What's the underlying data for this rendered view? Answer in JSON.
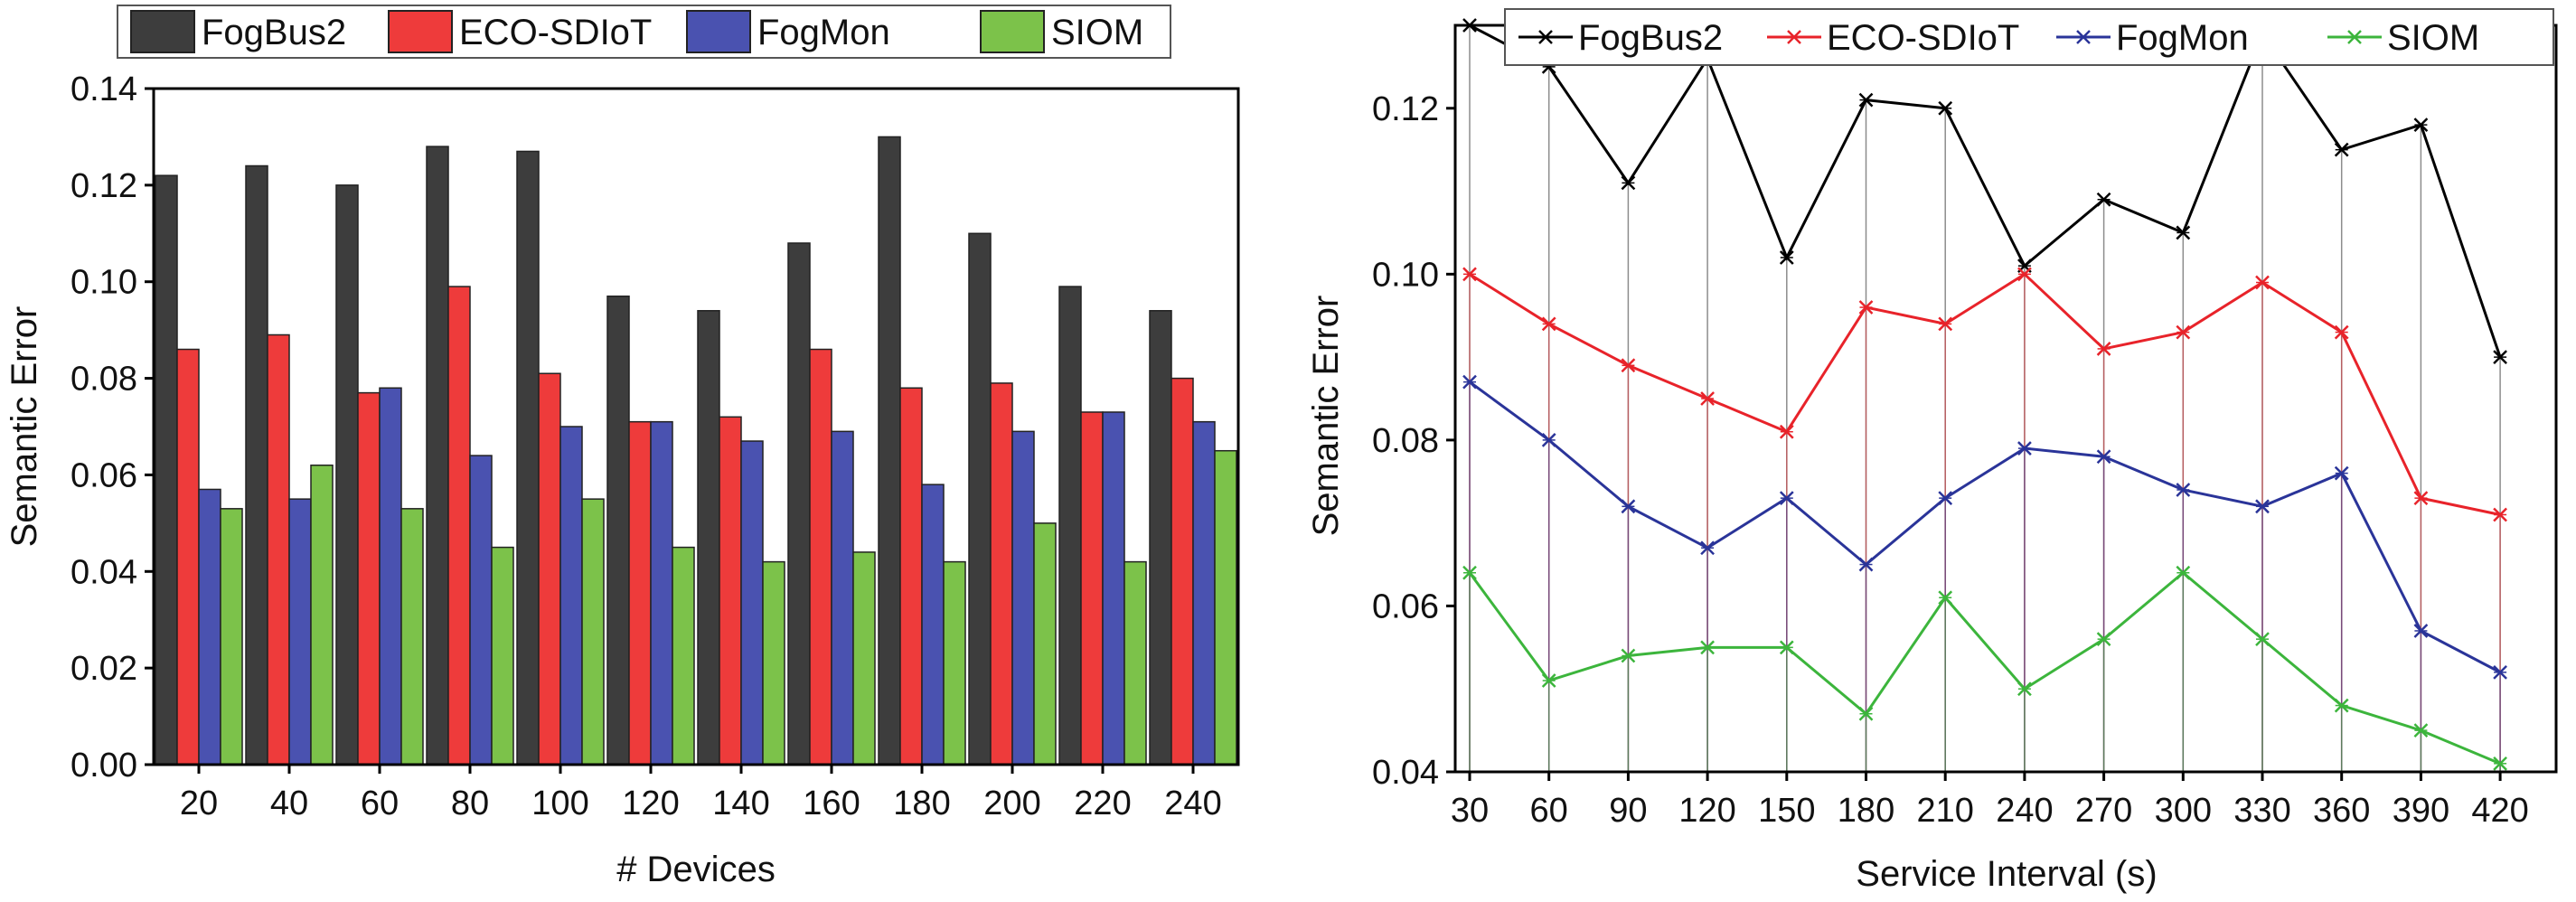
{
  "colors": {
    "FogBus2": "#3d3d3d",
    "ECO-SDIoT": "#ee3b3b",
    "FogMon": "#4a52b0",
    "SIOM": "#7cc24a"
  },
  "line_colors": {
    "FogBus2": "#000000",
    "ECO-SDIoT": "#e8232a",
    "FogMon": "#2a3499",
    "SIOM": "#3cb53c"
  },
  "chart_data": [
    {
      "type": "bar",
      "title": "",
      "xlabel": "# Devices",
      "ylabel": "Semantic Error",
      "ylim": [
        0,
        0.14
      ],
      "yticks": [
        "0.00",
        "0.02",
        "0.04",
        "0.06",
        "0.08",
        "0.10",
        "0.12",
        "0.14"
      ],
      "categories": [
        "20",
        "40",
        "60",
        "80",
        "100",
        "120",
        "140",
        "160",
        "180",
        "200",
        "220",
        "240"
      ],
      "legend": [
        "FogBus2",
        "ECO-SDIoT",
        "FogMon",
        "SIOM"
      ],
      "legend_position": "top",
      "series": [
        {
          "name": "FogBus2",
          "values": [
            0.122,
            0.124,
            0.12,
            0.128,
            0.127,
            0.097,
            0.094,
            0.108,
            0.13,
            0.11,
            0.099,
            0.094
          ]
        },
        {
          "name": "ECO-SDIoT",
          "values": [
            0.086,
            0.089,
            0.077,
            0.099,
            0.081,
            0.071,
            0.072,
            0.086,
            0.078,
            0.079,
            0.073,
            0.08
          ]
        },
        {
          "name": "FogMon",
          "values": [
            0.057,
            0.055,
            0.078,
            0.064,
            0.07,
            0.071,
            0.067,
            0.069,
            0.058,
            0.069,
            0.073,
            0.071
          ]
        },
        {
          "name": "SIOM",
          "values": [
            0.053,
            0.062,
            0.053,
            0.045,
            0.055,
            0.045,
            0.042,
            0.044,
            0.042,
            0.05,
            0.042,
            0.065
          ]
        }
      ]
    },
    {
      "type": "line",
      "title": "",
      "xlabel": "Service Interval (s)",
      "ylabel": "Semantic Error",
      "ylim": [
        0.04,
        0.13
      ],
      "yticks": [
        "0.04",
        "0.06",
        "0.08",
        "0.10",
        "0.12"
      ],
      "x": [
        "30",
        "60",
        "90",
        "120",
        "150",
        "180",
        "210",
        "240",
        "270",
        "300",
        "330",
        "360",
        "390",
        "420"
      ],
      "legend": [
        "FogBus2",
        "ECO-SDIoT",
        "FogMon",
        "SIOM"
      ],
      "legend_position": "top",
      "series": [
        {
          "name": "FogBus2",
          "values": [
            0.13,
            0.125,
            0.111,
            0.126,
            0.102,
            0.121,
            0.12,
            0.101,
            0.109,
            0.105,
            0.129,
            0.115,
            0.118,
            0.09
          ]
        },
        {
          "name": "ECO-SDIoT",
          "values": [
            0.1,
            0.094,
            0.089,
            0.085,
            0.081,
            0.096,
            0.094,
            0.1,
            0.091,
            0.093,
            0.099,
            0.093,
            0.073,
            0.071
          ]
        },
        {
          "name": "FogMon",
          "values": [
            0.087,
            0.08,
            0.072,
            0.067,
            0.073,
            0.065,
            0.073,
            0.079,
            0.078,
            0.074,
            0.072,
            0.076,
            0.057,
            0.052
          ]
        },
        {
          "name": "SIOM",
          "values": [
            0.064,
            0.051,
            0.054,
            0.055,
            0.055,
            0.047,
            0.061,
            0.05,
            0.056,
            0.064,
            0.056,
            0.048,
            0.045,
            0.041
          ]
        }
      ]
    }
  ]
}
